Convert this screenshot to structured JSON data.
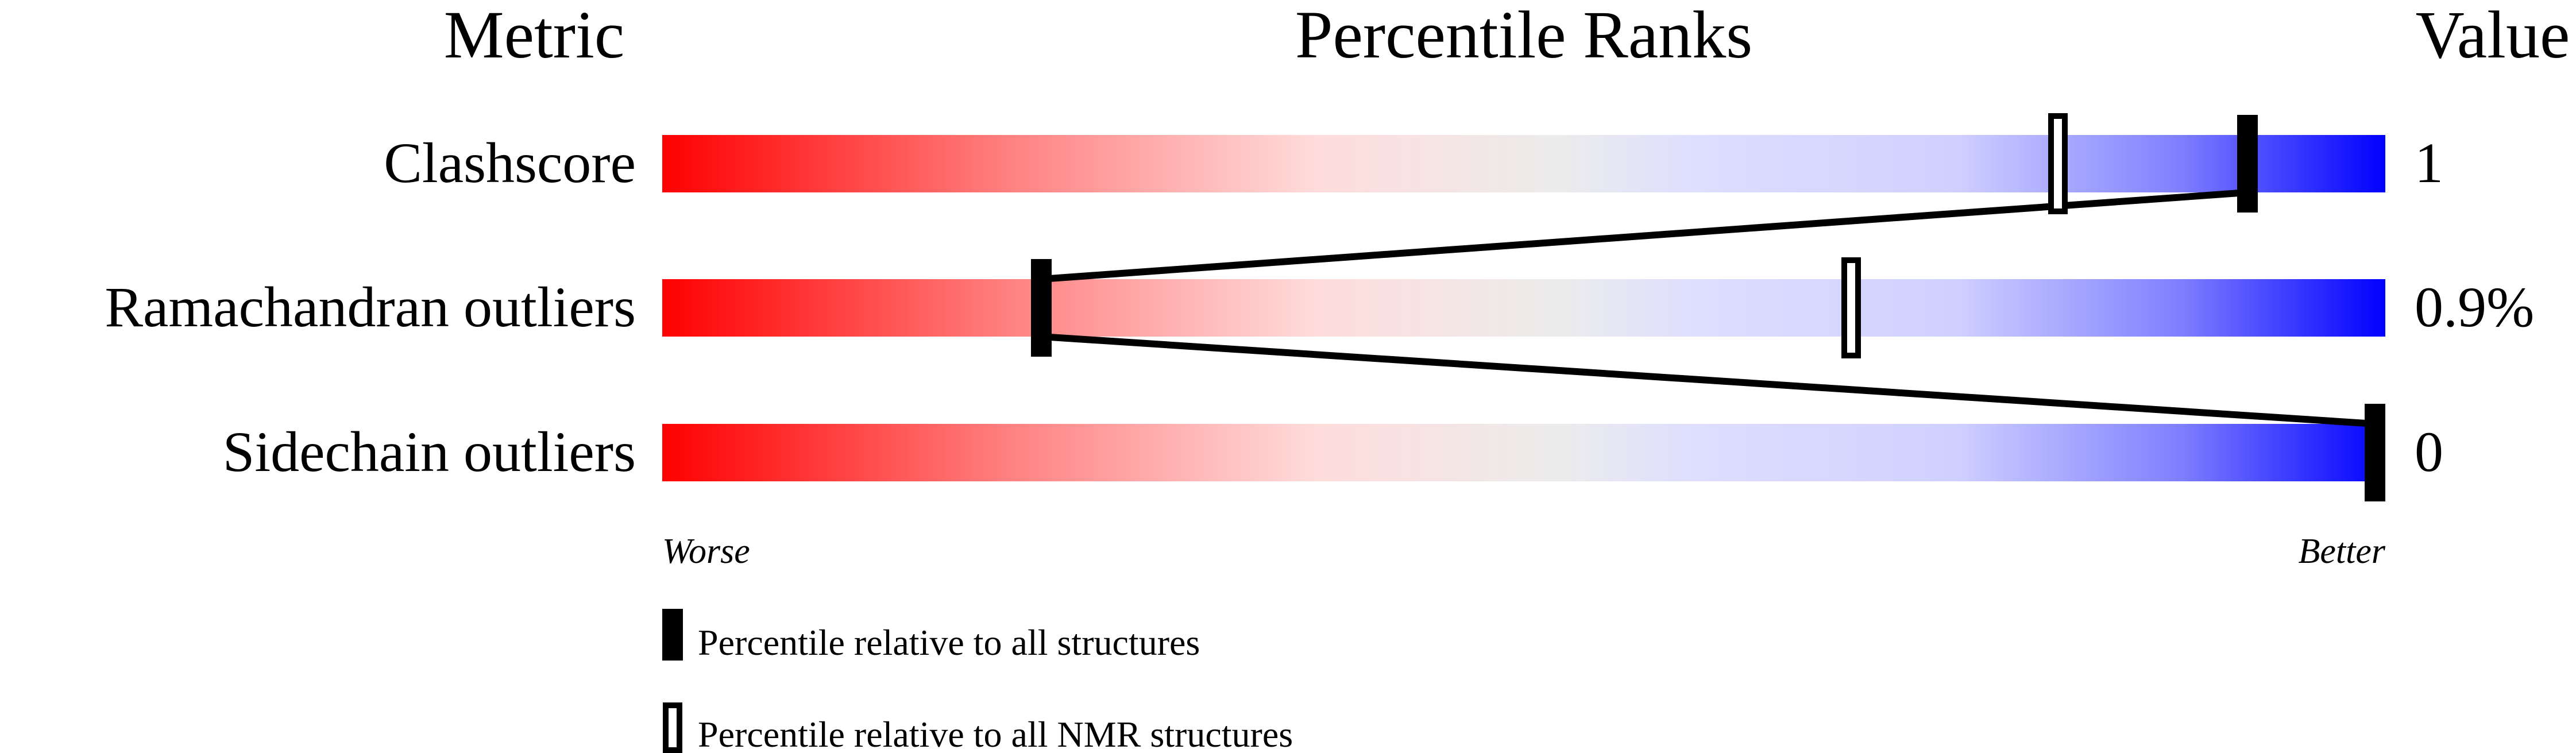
{
  "chart_data": {
    "type": "percentile-slider",
    "headers": {
      "metric": "Metric",
      "ranks": "Percentile Ranks",
      "value": "Value"
    },
    "xlim": [
      0,
      100
    ],
    "rows": [
      {
        "metric": "Clashscore",
        "value": "1",
        "percentile_all": 92,
        "percentile_nmr": 81
      },
      {
        "metric": "Ramachandran outliers",
        "value": "0.9%",
        "percentile_all": 22,
        "percentile_nmr": 69
      },
      {
        "metric": "Sidechain outliers",
        "value": "0",
        "percentile_all": 100,
        "percentile_nmr": null
      }
    ],
    "scale_labels": {
      "left": "Worse",
      "right": "Better"
    },
    "legend": [
      {
        "marker": "filled",
        "label": "Percentile relative to all structures"
      },
      {
        "marker": "outline",
        "label": "Percentile relative to all NMR structures"
      }
    ],
    "colors": {
      "worse": "#ff0000",
      "middle": "#eeeeee",
      "better": "#0000ff",
      "marker": "#000000"
    }
  }
}
